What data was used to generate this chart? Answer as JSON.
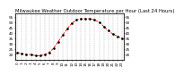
{
  "title": "Milwaukee Weather Outdoor Temperature per Hour (Last 24 Hours)",
  "x_values": [
    0,
    1,
    2,
    3,
    4,
    5,
    6,
    7,
    8,
    9,
    10,
    11,
    12,
    13,
    14,
    15,
    16,
    17,
    18,
    19,
    20,
    21,
    22,
    23
  ],
  "y_values": [
    22,
    21,
    20,
    20,
    19,
    19,
    20,
    22,
    26,
    32,
    38,
    44,
    49,
    52,
    53,
    53,
    53,
    52,
    50,
    46,
    42,
    39,
    37,
    35
  ],
  "ylim": [
    15,
    58
  ],
  "xlim": [
    -0.5,
    23.5
  ],
  "yticks": [
    20,
    25,
    30,
    35,
    40,
    45,
    50,
    55
  ],
  "xticks": [
    0,
    1,
    2,
    3,
    4,
    5,
    6,
    7,
    8,
    9,
    10,
    11,
    12,
    13,
    14,
    15,
    16,
    17,
    18,
    19,
    20,
    21,
    22,
    23
  ],
  "line_color": "#ff0000",
  "line_style": "--",
  "marker": ".",
  "marker_color": "#000000",
  "grid_color": "#aaaaaa",
  "bg_color": "#ffffff",
  "title_fontsize": 3.8,
  "tick_fontsize": 3.0,
  "linewidth": 0.6,
  "markersize": 1.8
}
